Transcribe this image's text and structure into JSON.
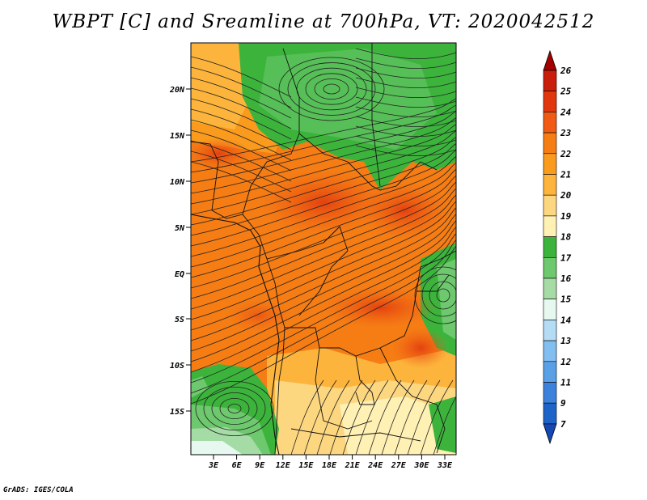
{
  "title": "WBPT [C] and Sreamline at 700hPa, VT: 2020042512",
  "credit": "GrADS: IGES/COLA",
  "lat_labels": [
    "20N",
    "15N",
    "10N",
    "5N",
    "EQ",
    "5S",
    "10S",
    "15S"
  ],
  "lon_labels": [
    "3E",
    "6E",
    "9E",
    "12E",
    "15E",
    "18E",
    "21E",
    "24E",
    "27E",
    "30E",
    "33E"
  ],
  "colorbar": {
    "levels": [
      "26",
      "25",
      "24",
      "23",
      "22",
      "21",
      "20",
      "19",
      "18",
      "17",
      "16",
      "15",
      "14",
      "13",
      "12",
      "11",
      "9",
      "7"
    ],
    "colors": [
      "#a50000",
      "#c81e0a",
      "#e0370f",
      "#f05a14",
      "#f57d14",
      "#fa9b1e",
      "#fcb43c",
      "#fdd780",
      "#fff0b4",
      "#3cb43c",
      "#6ec86e",
      "#a5dca5",
      "#e6f8f0",
      "#b4dcf5",
      "#82bef0",
      "#5aa0e6",
      "#3c82dc",
      "#1e64c8",
      "#1448b4"
    ]
  }
}
